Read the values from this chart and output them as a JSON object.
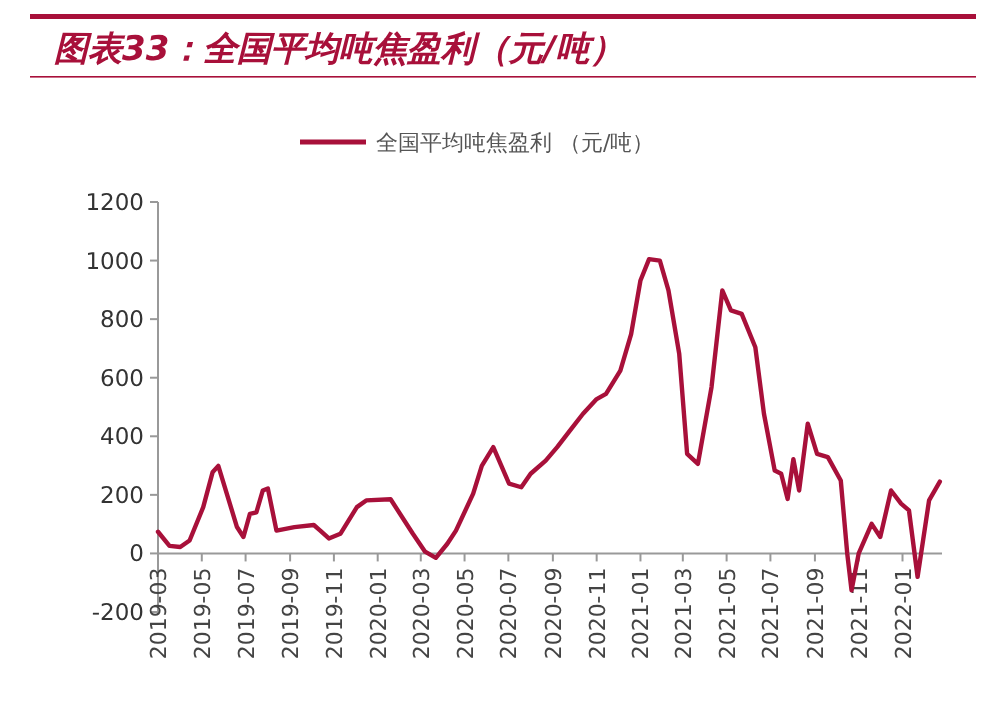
{
  "chart_data": {
    "type": "line",
    "title": "图表33：全国平均吨焦盈利（元/吨）",
    "legend": "top",
    "x": [
      "2019-03-01",
      "2019-03-17",
      "2019-04-01",
      "2019-04-14",
      "2019-05-03",
      "2019-05-16",
      "2019-05-24",
      "2019-06-19",
      "2019-06-28",
      "2019-07-07",
      "2019-07-16",
      "2019-07-25",
      "2019-08-01",
      "2019-08-13",
      "2019-09-07",
      "2019-10-04",
      "2019-10-13",
      "2019-10-25",
      "2019-11-10",
      "2019-12-03",
      "2019-12-16",
      "2020-01-19",
      "2020-02-19",
      "2020-03-07",
      "2020-03-22",
      "2020-04-07",
      "2020-04-19",
      "2020-05-13",
      "2020-05-25",
      "2020-06-10",
      "2020-07-02",
      "2020-07-19",
      "2020-08-01",
      "2020-08-22",
      "2020-09-07",
      "2020-09-25",
      "2020-10-13",
      "2020-11-01",
      "2020-11-14",
      "2020-12-04",
      "2020-12-19",
      "2021-01-01",
      "2021-01-13",
      "2021-01-28",
      "2021-02-09",
      "2021-02-24",
      "2021-03-07",
      "2021-03-22",
      "2021-04-10",
      "2021-04-25",
      "2021-05-07",
      "2021-05-22",
      "2021-06-10",
      "2021-06-22",
      "2021-07-07",
      "2021-07-16",
      "2021-07-25",
      "2021-08-02",
      "2021-08-10",
      "2021-08-22",
      "2021-09-04",
      "2021-09-19",
      "2021-10-07",
      "2021-10-16",
      "2021-10-22",
      "2021-11-01",
      "2021-11-19",
      "2021-12-01",
      "2021-12-16",
      "2021-12-30",
      "2022-01-10",
      "2022-01-22",
      "2022-02-07",
      "2022-02-22"
    ],
    "series": [
      {
        "name": "全国平均吨焦盈利 （元/吨）",
        "color": "#a8103a",
        "values": [
          74,
          26,
          22,
          44,
          158,
          277,
          299,
          90,
          56,
          135,
          140,
          215,
          222,
          78,
          90,
          97,
          78,
          51,
          67,
          158,
          181,
          185,
          67,
          6,
          -15,
          33,
          78,
          204,
          299,
          363,
          238,
          226,
          272,
          317,
          363,
          420,
          477,
          527,
          545,
          624,
          749,
          932,
          1005,
          1000,
          898,
          681,
          340,
          306,
          568,
          898,
          830,
          818,
          704,
          477,
          283,
          272,
          186,
          322,
          215,
          443,
          340,
          329,
          249,
          0,
          -126,
          0,
          101,
          56,
          215,
          170,
          147,
          -80,
          181,
          245
        ]
      }
    ],
    "xlim": [
      "2019-03-01",
      "2022-02-25"
    ],
    "xticks": [
      "2019-03",
      "2019-05",
      "2019-07",
      "2019-09",
      "2019-11",
      "2020-01",
      "2020-03",
      "2020-05",
      "2020-07",
      "2020-09",
      "2020-11",
      "2021-01",
      "2021-03",
      "2021-05",
      "2021-07",
      "2021-09",
      "2021-11",
      "2022-01"
    ],
    "ylim": [
      -200,
      1200
    ],
    "yticks": [
      -200,
      0,
      200,
      400,
      600,
      800,
      1000,
      1200
    ]
  }
}
